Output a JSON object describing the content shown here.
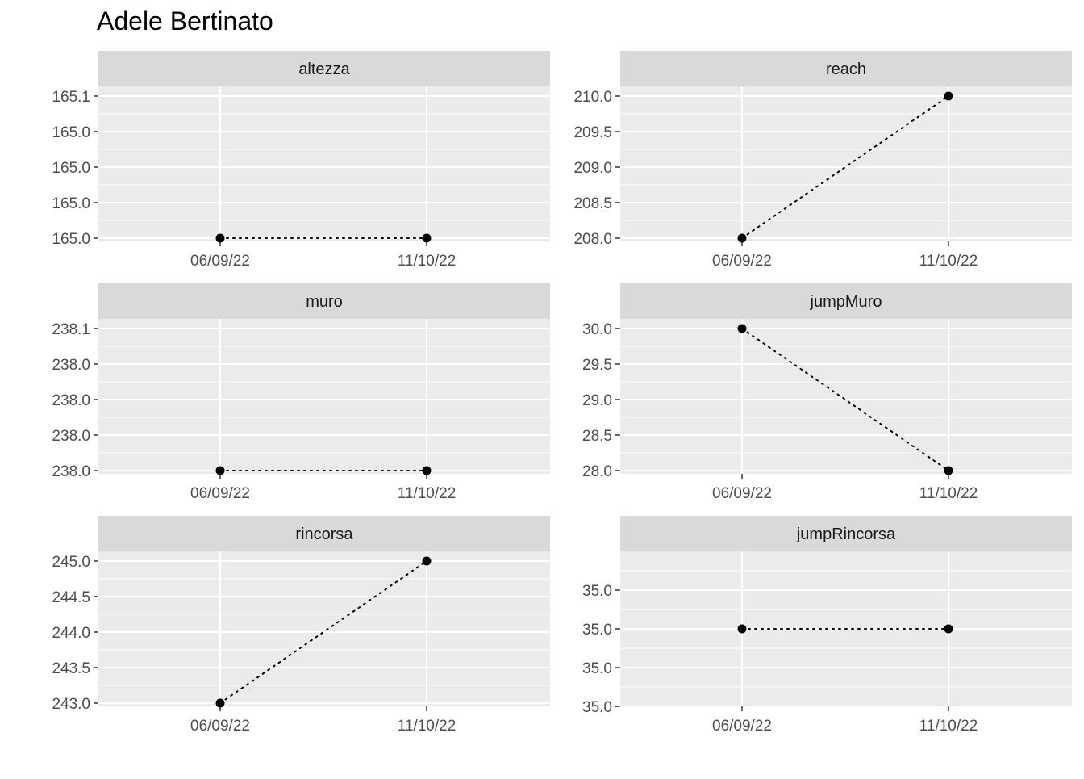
{
  "title": "Adele Bertinato",
  "colors": {
    "strip_bg": "#d9d9d9",
    "panel_bg": "#ebebeb",
    "grid": "#ffffff",
    "point": "#000000",
    "tick_text": "#4d4d4d",
    "strip_text": "#1a1a1a"
  },
  "chart_data": [
    {
      "type": "line",
      "facet": "altezza",
      "x": [
        "06/09/22",
        "11/10/22"
      ],
      "values": [
        165.0,
        165.0
      ],
      "yticks": [
        "165.1",
        "165.0",
        "165.0",
        "165.0",
        "165.0"
      ],
      "line_style": "dotted",
      "grid": true
    },
    {
      "type": "line",
      "facet": "reach",
      "x": [
        "06/09/22",
        "11/10/22"
      ],
      "values": [
        208.0,
        210.0
      ],
      "yticks": [
        "210.0",
        "209.5",
        "209.0",
        "208.5",
        "208.0"
      ],
      "line_style": "dotted",
      "grid": true
    },
    {
      "type": "line",
      "facet": "muro",
      "x": [
        "06/09/22",
        "11/10/22"
      ],
      "values": [
        238.0,
        238.0
      ],
      "yticks": [
        "238.1",
        "238.0",
        "238.0",
        "238.0",
        "238.0"
      ],
      "line_style": "dotted",
      "grid": true
    },
    {
      "type": "line",
      "facet": "jumpMuro",
      "x": [
        "06/09/22",
        "11/10/22"
      ],
      "values": [
        30.0,
        28.0
      ],
      "yticks": [
        "30.0",
        "29.5",
        "29.0",
        "28.5",
        "28.0"
      ],
      "line_style": "dotted",
      "grid": true
    },
    {
      "type": "line",
      "facet": "rincorsa",
      "x": [
        "06/09/22",
        "11/10/22"
      ],
      "values": [
        243.0,
        245.0
      ],
      "yticks": [
        "245.0",
        "244.5",
        "244.0",
        "243.5",
        "243.0"
      ],
      "line_style": "dotted",
      "grid": true
    },
    {
      "type": "line",
      "facet": "jumpRincorsa",
      "x": [
        "06/09/22",
        "11/10/22"
      ],
      "values": [
        35.0,
        35.0
      ],
      "yticks": [
        "35.0",
        "35.0",
        "35.0",
        "35.0"
      ],
      "line_style": "dotted",
      "grid": true
    }
  ]
}
